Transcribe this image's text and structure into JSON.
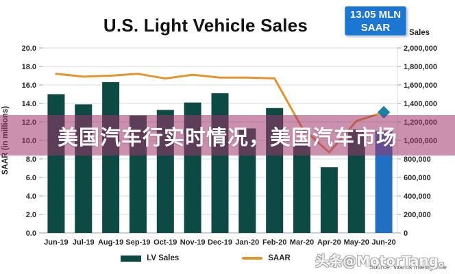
{
  "header": {
    "title": "U.S. Light Vehicle Sales",
    "badge_line1": "13.05 MLN",
    "badge_line2": "SAAR",
    "badge_color": "#1b76d4"
  },
  "overlay": {
    "text": "美国汽车行实时情况，美国汽车市场"
  },
  "watermark": {
    "text": "头条@MotorTang。"
  },
  "source": {
    "text": "Source: Wards Intelligence"
  },
  "chart_data": {
    "type": "bar",
    "title": "U.S. Light Vehicle Sales",
    "categories": [
      "Jun-19",
      "Jul-19",
      "Aug-19",
      "Sep-19",
      "Oct-19",
      "Nov-19",
      "Dec-19",
      "Jan-20",
      "Feb-20",
      "Mar-20",
      "Apr-20",
      "May-20",
      "Jun-20"
    ],
    "series": [
      {
        "name": "LV Sales",
        "type": "bar",
        "axis": "right",
        "color": "#0d4a44",
        "highlight_index": 12,
        "highlight_color": "#1f70c2",
        "values": [
          1500000,
          1390000,
          1630000,
          1270000,
          1330000,
          1410000,
          1510000,
          1130000,
          1350000,
          990000,
          710000,
          1120000,
          1100000
        ]
      },
      {
        "name": "SAAR",
        "type": "line",
        "axis": "left",
        "color": "#e7932c",
        "marker": "diamond-on-last-point",
        "marker_color": "#1b7fa6",
        "values": [
          17.2,
          16.9,
          17.0,
          17.2,
          16.7,
          17.1,
          16.8,
          16.8,
          16.7,
          11.4,
          8.7,
          12.1,
          13.05
        ]
      }
    ],
    "left_axis": {
      "label": "SAAR (in millions)",
      "min": 0,
      "max": 20,
      "step": 2
    },
    "right_axis": {
      "label": "Sales",
      "min": 0,
      "max": 2000000,
      "step": 200000
    },
    "grid": true,
    "legend_position": "bottom",
    "colors": {
      "gridline": "#d9d9d9",
      "baseline": "#9e9e9e",
      "tick_text": "#262626"
    }
  }
}
